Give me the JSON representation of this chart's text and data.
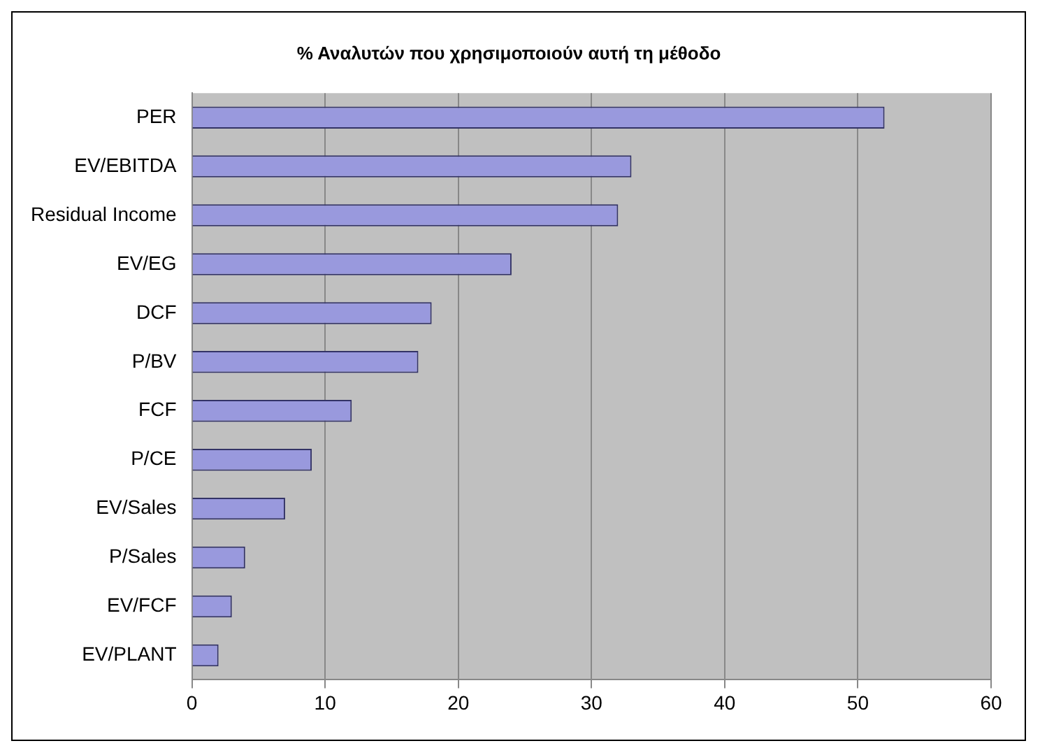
{
  "chart_data": {
    "type": "bar",
    "orientation": "horizontal",
    "title": "% Αναλυτών που χρησιμοποιούν αυτή τη μέθοδο",
    "categories": [
      "PER",
      "EV/EBITDA",
      "Residual Income",
      "EV/EG",
      "DCF",
      "P/BV",
      "FCF",
      "P/CE",
      "EV/Sales",
      "P/Sales",
      "EV/FCF",
      "EV/PLANT"
    ],
    "values": [
      52,
      33,
      32,
      24,
      18,
      17,
      12,
      9,
      7,
      4,
      3,
      2
    ],
    "color": "#9999dd",
    "xlim": [
      0,
      60
    ],
    "xticks": [
      0,
      10,
      20,
      30,
      40,
      50,
      60
    ],
    "grid": "x",
    "legend": false
  }
}
